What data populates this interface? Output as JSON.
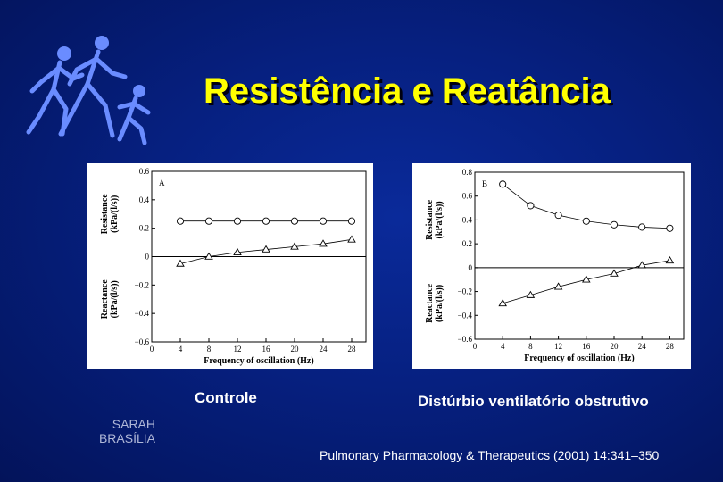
{
  "slide": {
    "title": "Resistência e Reatância",
    "caption_left": "Controle",
    "caption_right": "Distúrbio ventilatório obstrutivo",
    "institution_line1": "SARAH",
    "institution_line2": "BRASÍLIA",
    "reference": "Pulmonary Pharmacology & Therapeutics (2001) 14:341–350",
    "title_color": "#ffff00",
    "logo_color": "#6a8cff"
  },
  "chart_data": [
    {
      "type": "line",
      "panel_label": "A",
      "x": [
        4,
        8,
        12,
        16,
        20,
        24,
        28
      ],
      "xlim": [
        0,
        30
      ],
      "xticks": [
        0,
        4,
        8,
        12,
        16,
        20,
        24,
        28
      ],
      "xlabel": "Frequency of oscillation (Hz)",
      "ylim": [
        -0.6,
        0.6
      ],
      "yticks": [
        0.6,
        0.4,
        0.2,
        0,
        -0.2,
        -0.4,
        -0.6
      ],
      "ytick_labels": [
        "0.6",
        "0.4",
        "0.2",
        "0",
        "−0.2",
        "−0.4",
        "−0.6"
      ],
      "ylabel_top": [
        "Resistance",
        "(kPa/(l/s))"
      ],
      "ylabel_bottom": [
        "Reactance",
        "(kPa/(l/s))"
      ],
      "series": [
        {
          "marker": "circle",
          "values": [
            0.25,
            0.25,
            0.25,
            0.25,
            0.25,
            0.25,
            0.25
          ]
        },
        {
          "marker": "triangle",
          "values": [
            -0.05,
            0.0,
            0.03,
            0.05,
            0.07,
            0.09,
            0.12
          ]
        }
      ]
    },
    {
      "type": "line",
      "panel_label": "B",
      "x": [
        4,
        8,
        12,
        16,
        20,
        24,
        28
      ],
      "xlim": [
        0,
        30
      ],
      "xticks": [
        0,
        4,
        8,
        12,
        16,
        20,
        24,
        28
      ],
      "xlabel": "Frequency of oscillation (Hz)",
      "ylim": [
        -0.6,
        0.8
      ],
      "yticks": [
        0.8,
        0.6,
        0.4,
        0.2,
        0,
        -0.2,
        -0.4,
        -0.6
      ],
      "ytick_labels": [
        "0.8",
        "0.6",
        "0.4",
        "0.2",
        "0",
        "−0.2",
        "−0.4",
        "−0.6"
      ],
      "ylabel_top": [
        "Resistance",
        "(kPa/(l/s))"
      ],
      "ylabel_bottom": [
        "Reactance",
        "(kPa/(l/s))"
      ],
      "series": [
        {
          "marker": "circle",
          "values": [
            0.7,
            0.52,
            0.44,
            0.39,
            0.36,
            0.34,
            0.33
          ]
        },
        {
          "marker": "triangle",
          "values": [
            -0.3,
            -0.23,
            -0.16,
            -0.1,
            -0.05,
            0.02,
            0.06
          ]
        }
      ]
    }
  ]
}
